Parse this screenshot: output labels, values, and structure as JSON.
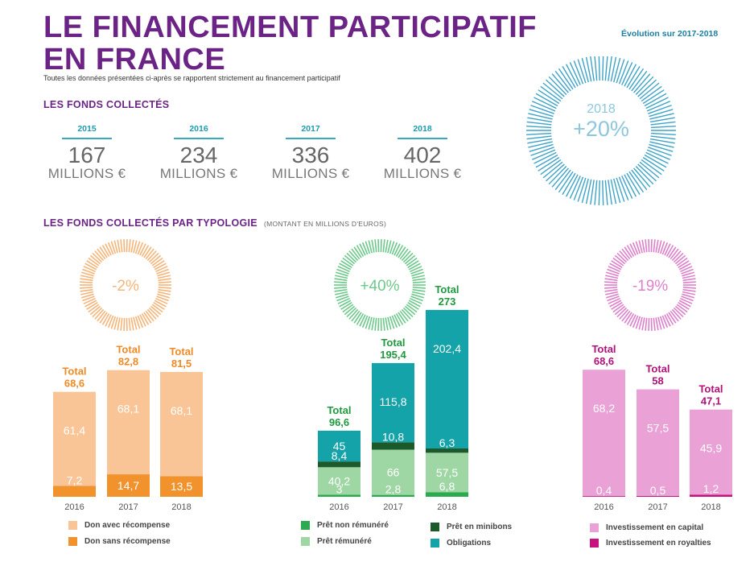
{
  "header": {
    "title_line1": "LE FINANCEMENT PARTICIPATIF",
    "title_line2": "EN FRANCE",
    "subtitle": "Toutes les données présentées ci-après se rapportent strictement au financement participatif"
  },
  "funds": {
    "heading": "LES FONDS COLLECTÉS",
    "unit": "MILLIONS €",
    "years": [
      {
        "year": "2015",
        "amount": "167"
      },
      {
        "year": "2016",
        "amount": "234"
      },
      {
        "year": "2017",
        "amount": "336"
      },
      {
        "year": "2018",
        "amount": "402"
      }
    ]
  },
  "evolution": {
    "label": "Évolution sur 2017-2018",
    "year": "2018",
    "change": "+20%",
    "color": "#3da3c8"
  },
  "typology": {
    "heading": "LES FONDS COLLECTÉS PAR TYPOLOGIE",
    "note": "(MONTANT EN MILLIONS D'EUROS)"
  },
  "chart_data": [
    {
      "type": "bar",
      "stacked": true,
      "categories": [
        "2016",
        "2017",
        "2018"
      ],
      "badge": "-2%",
      "badge_color": "#f6b478",
      "total_label": "Total",
      "totals": [
        "68,6",
        "82,8",
        "81,5"
      ],
      "total_color": "#f08a24",
      "series": [
        {
          "name": "Don sans récompense",
          "values": [
            7.2,
            14.7,
            13.5
          ],
          "labels": [
            "7,2",
            "14,7",
            "13,5"
          ],
          "color": "#f2922c"
        },
        {
          "name": "Don avec récompense",
          "values": [
            61.4,
            68.1,
            68.1
          ],
          "labels": [
            "61,4",
            "68,1",
            "68,1"
          ],
          "color": "#f9c597"
        }
      ]
    },
    {
      "type": "bar",
      "stacked": true,
      "categories": [
        "2016",
        "2017",
        "2018"
      ],
      "badge": "+40%",
      "badge_color": "#6cc98a",
      "total_label": "Total",
      "totals": [
        "96,6",
        "195,4",
        "273"
      ],
      "total_color": "#1e9a3e",
      "series": [
        {
          "name": "Prêt non rémunéré",
          "values": [
            3,
            2.8,
            6.8
          ],
          "labels": [
            "3",
            "2,8",
            "6,8"
          ],
          "color": "#2bab4f"
        },
        {
          "name": "Prêt rémunéré",
          "values": [
            40.2,
            66,
            57.5
          ],
          "labels": [
            "40,2",
            "66",
            "57,5"
          ],
          "color": "#9fd7a4"
        },
        {
          "name": "Prêt en minibons",
          "values": [
            8.4,
            10.8,
            6.3
          ],
          "labels": [
            "8,4",
            "10,8",
            "6,3"
          ],
          "color": "#1c5a2c"
        },
        {
          "name": "Obligations",
          "values": [
            45,
            115.8,
            202.4
          ],
          "labels": [
            "45",
            "115,8",
            "202,4"
          ],
          "color": "#13a3a8"
        }
      ]
    },
    {
      "type": "bar",
      "stacked": true,
      "categories": [
        "2016",
        "2017",
        "2018"
      ],
      "badge": "-19%",
      "badge_color": "#df7fcb",
      "total_label": "Total",
      "totals": [
        "68,6",
        "58",
        "47,1"
      ],
      "total_color": "#b0127a",
      "series": [
        {
          "name": "Investissement en royalties",
          "values": [
            0.4,
            0.5,
            1.2
          ],
          "labels": [
            "0,4",
            "0,5",
            "1,2"
          ],
          "color": "#c8137f"
        },
        {
          "name": "Investissement en capital",
          "values": [
            68.2,
            57.5,
            45.9
          ],
          "labels": [
            "68,2",
            "57,5",
            "45,9"
          ],
          "color": "#e9a1d6"
        }
      ]
    }
  ],
  "legends": [
    {
      "label": "Don avec récompense",
      "color": "#f9c597"
    },
    {
      "label": "Don sans récompense",
      "color": "#f2922c"
    },
    {
      "label": "Prêt non rémunéré",
      "color": "#2bab4f"
    },
    {
      "label": "Prêt rémunéré",
      "color": "#9fd7a4"
    },
    {
      "label": "Prêt en minibons",
      "color": "#1c5a2c"
    },
    {
      "label": "Obligations",
      "color": "#13a3a8"
    },
    {
      "label": "Investissement en capital",
      "color": "#e9a1d6"
    },
    {
      "label": "Investissement en royalties",
      "color": "#c8137f"
    }
  ]
}
